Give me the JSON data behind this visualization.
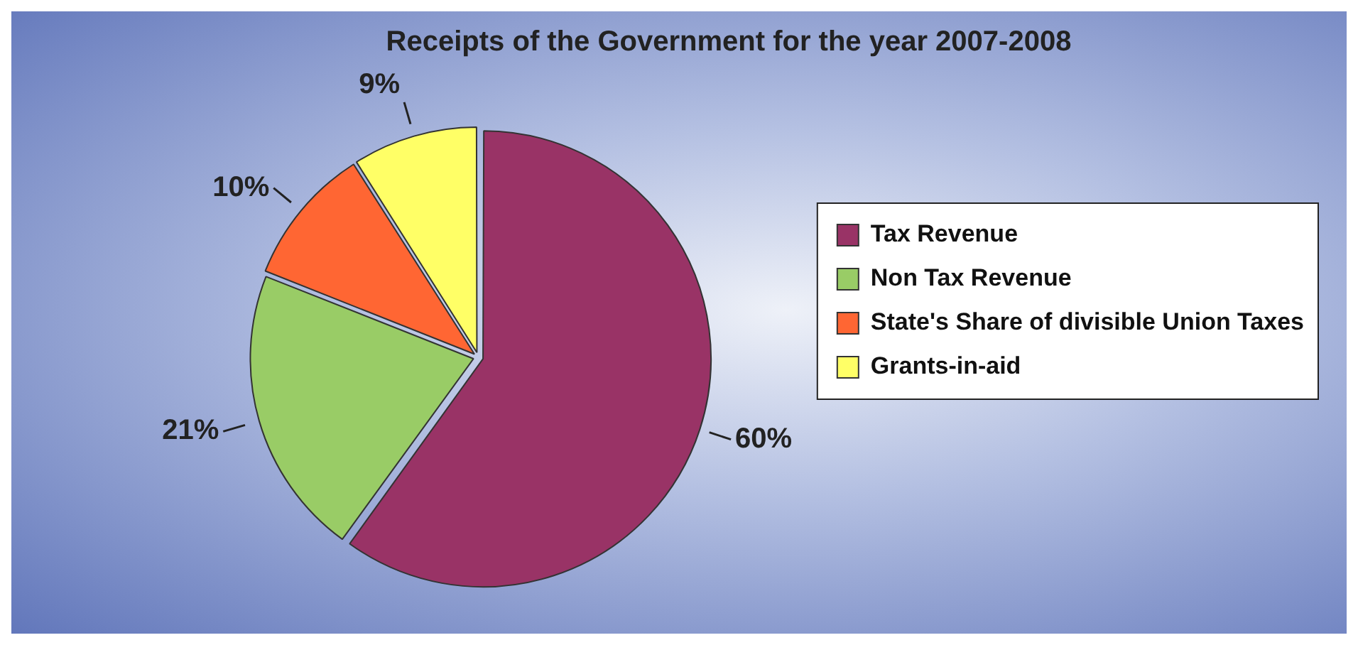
{
  "chart_data": {
    "type": "pie",
    "title": "Receipts of the Government for the year 2007-2008",
    "categories": [
      "Tax Revenue",
      "Non Tax Revenue",
      "State's Share of divisible Union Taxes",
      "Grants-in-aid"
    ],
    "values": [
      60,
      21,
      10,
      9
    ],
    "value_labels": [
      "60%",
      "21%",
      "10%",
      "9%"
    ],
    "colors": [
      "#993366",
      "#99cc66",
      "#ff6633",
      "#ffff66"
    ],
    "legend": "right"
  }
}
